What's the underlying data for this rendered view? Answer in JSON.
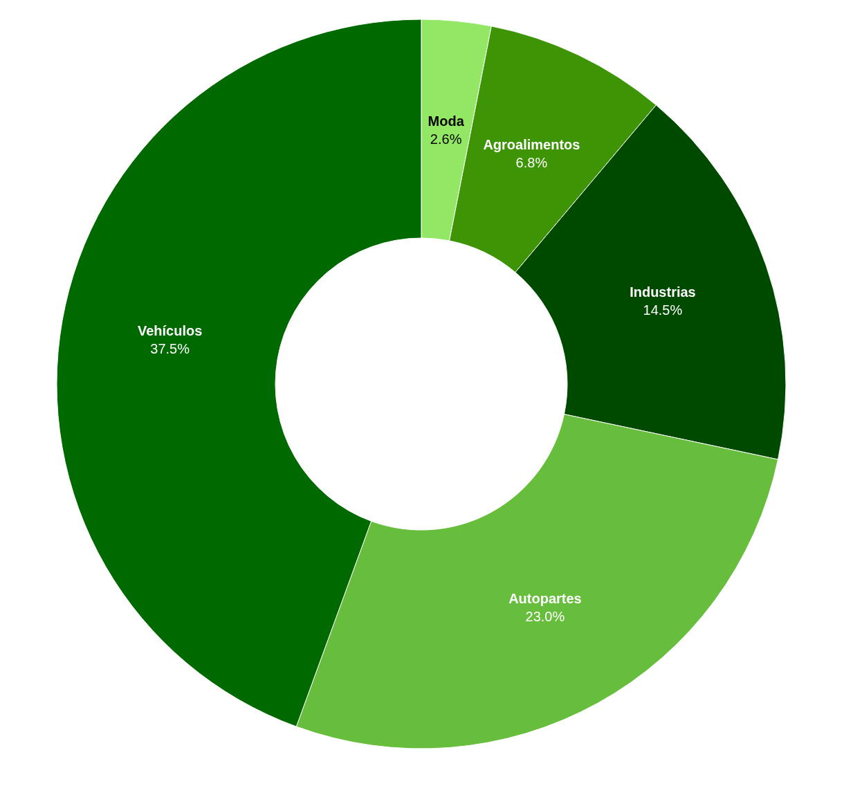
{
  "chart_data": {
    "type": "donut",
    "categories": [
      "Moda",
      "Agroalimentos",
      "Industrias",
      "Autopartes",
      "Vehículos"
    ],
    "values": [
      2.6,
      6.8,
      14.5,
      23.0,
      37.5
    ],
    "value_labels": [
      "2.6%",
      "6.8%",
      "14.5%",
      "23.0%",
      "37.5%"
    ],
    "colors": [
      "#92e865",
      "#3d9405",
      "#004a00",
      "#67bd3c",
      "#006900"
    ]
  }
}
